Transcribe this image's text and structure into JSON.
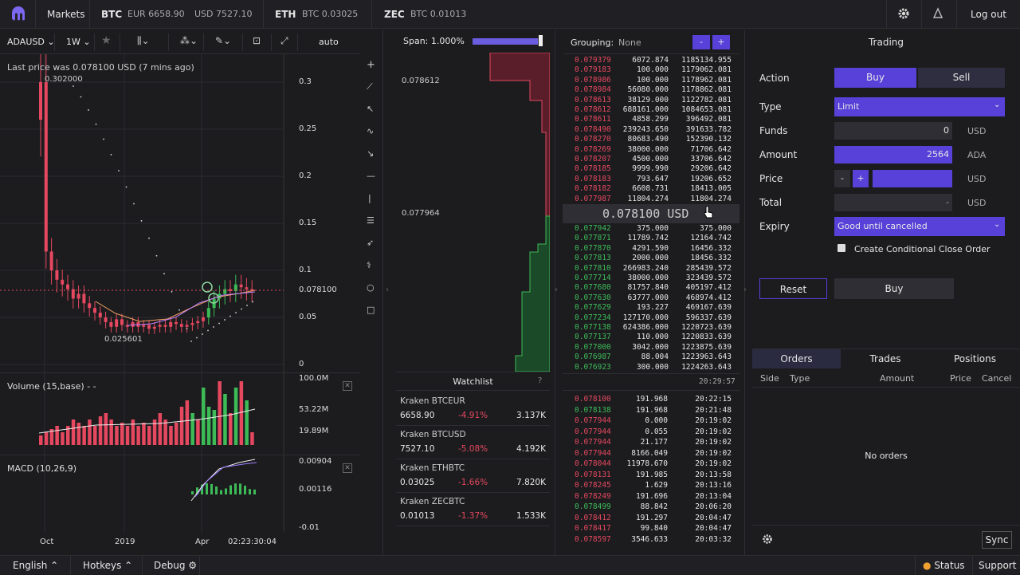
{
  "topbar": {
    "logo": "kraken-logo-icon",
    "markets": "Markets",
    "btc_label": "BTC",
    "btc_eur": "EUR 6658.90",
    "btc_usd": "USD 7527.10",
    "eth_label": "ETH",
    "eth_btc": "BTC 0.03025",
    "zec_label": "ZEC",
    "zec_btc": "BTC 0.01013",
    "logout": "Log out"
  },
  "chart_toolbar": {
    "pair": "ADAUSD",
    "interval": "1W",
    "auto": "auto"
  },
  "chart": {
    "last_price_text": "Last price was 0.078100 USD (7 mins ago)",
    "high_label": "0.302000",
    "low_label": "0.025601",
    "price_ticks": [
      "0.3",
      "0.25",
      "0.2",
      "0.15",
      "0.1",
      "0.078100",
      "0.05",
      "0"
    ],
    "volume_title": "Volume (15,base) - -",
    "volume_ticks": [
      "100.0M",
      "53.22M",
      "19.89M"
    ],
    "macd_title": "MACD (10,26,9)",
    "macd_ticks": [
      "0.00904",
      "0.00116",
      "-0.01"
    ],
    "x_ticks": [
      "Oct",
      "2019",
      "Apr"
    ],
    "time_label": "02:23:30:04"
  },
  "depth": {
    "span_label": "Span: 1.000%",
    "span_fraction": 0.95,
    "price_top": "0.078612",
    "price_mid": "0.077964"
  },
  "watchlist": {
    "title": "Watchlist",
    "help": "?",
    "items": [
      {
        "name": "Kraken BTCEUR",
        "price": "6658.90",
        "change": "-4.91%",
        "volume": "3.137K"
      },
      {
        "name": "Kraken BTCUSD",
        "price": "7527.10",
        "change": "-5.08%",
        "volume": "4.192K"
      },
      {
        "name": "Kraken ETHBTC",
        "price": "0.03025",
        "change": "-1.66%",
        "volume": "7.820K"
      },
      {
        "name": "Kraken ZECBTC",
        "price": "0.01013",
        "change": "-1.37%",
        "volume": "1.533K"
      }
    ]
  },
  "orderbook": {
    "grouping_label": "Grouping:",
    "grouping_value": "None",
    "minus": "-",
    "plus": "+",
    "asks": [
      [
        "0.079379",
        "6072.874",
        "1185134.955"
      ],
      [
        "0.079183",
        "100.000",
        "1179062.081"
      ],
      [
        "0.078986",
        "100.000",
        "1178962.081"
      ],
      [
        "0.078984",
        "56080.000",
        "1178862.081"
      ],
      [
        "0.078613",
        "38129.000",
        "1122782.081"
      ],
      [
        "0.078612",
        "688161.000",
        "1084653.081"
      ],
      [
        "0.078611",
        "4858.299",
        "396492.081"
      ],
      [
        "0.078490",
        "239243.650",
        "391633.782"
      ],
      [
        "0.078270",
        "80683.490",
        "152390.132"
      ],
      [
        "0.078269",
        "38000.000",
        "71706.642"
      ],
      [
        "0.078207",
        "4500.000",
        "33706.642"
      ],
      [
        "0.078185",
        "9999.990",
        "29206.642"
      ],
      [
        "0.078183",
        "793.647",
        "19206.652"
      ],
      [
        "0.078182",
        "6608.731",
        "18413.005"
      ],
      [
        "0.077987",
        "11804.274",
        "11804.274"
      ]
    ],
    "mid_price": "0.078100 USD",
    "bids": [
      [
        "0.077942",
        "375.000",
        "375.000"
      ],
      [
        "0.077871",
        "11789.742",
        "12164.742"
      ],
      [
        "0.077870",
        "4291.590",
        "16456.332"
      ],
      [
        "0.077813",
        "2000.000",
        "18456.332"
      ],
      [
        "0.077810",
        "266983.240",
        "285439.572"
      ],
      [
        "0.077714",
        "38000.000",
        "323439.572"
      ],
      [
        "0.077680",
        "81757.840",
        "405197.412"
      ],
      [
        "0.077630",
        "63777.000",
        "468974.412"
      ],
      [
        "0.077629",
        "193.227",
        "469167.639"
      ],
      [
        "0.077234",
        "127170.000",
        "596337.639"
      ],
      [
        "0.077138",
        "624386.000",
        "1220723.639"
      ],
      [
        "0.077137",
        "110.000",
        "1220833.639"
      ],
      [
        "0.077000",
        "3042.000",
        "1223875.639"
      ],
      [
        "0.076987",
        "88.004",
        "1223963.643"
      ],
      [
        "0.076923",
        "300.000",
        "1224263.643"
      ]
    ]
  },
  "trades": {
    "header_time": "20:29:57",
    "rows": [
      [
        "0.078100",
        "191.968",
        "20:22:15",
        "r"
      ],
      [
        "0.078138",
        "191.968",
        "20:21:48",
        "g"
      ],
      [
        "0.077944",
        "0.000",
        "20:19:02",
        "r"
      ],
      [
        "0.077944",
        "0.055",
        "20:19:02",
        "r"
      ],
      [
        "0.077944",
        "21.177",
        "20:19:02",
        "r"
      ],
      [
        "0.077944",
        "8166.049",
        "20:19:02",
        "r"
      ],
      [
        "0.078044",
        "11978.670",
        "20:19:02",
        "r"
      ],
      [
        "0.078131",
        "191.985",
        "20:13:58",
        "r"
      ],
      [
        "0.078245",
        "1.629",
        "20:13:16",
        "r"
      ],
      [
        "0.078249",
        "191.696",
        "20:13:04",
        "r"
      ],
      [
        "0.078499",
        "88.842",
        "20:06:20",
        "g"
      ],
      [
        "0.078412",
        "191.297",
        "20:04:47",
        "r"
      ],
      [
        "0.078417",
        "99.840",
        "20:04:47",
        "r"
      ],
      [
        "0.078597",
        "3546.633",
        "20:03:32",
        "r"
      ]
    ]
  },
  "trading": {
    "title": "Trading",
    "action_label": "Action",
    "buy": "Buy",
    "sell": "Sell",
    "type_label": "Type",
    "type_value": "Limit",
    "funds_label": "Funds",
    "funds_value": "0",
    "funds_unit": "USD",
    "amount_label": "Amount",
    "amount_value": "2564",
    "amount_unit": "ADA",
    "price_label": "Price",
    "price_minus": "-",
    "price_plus": "+",
    "price_unit": "USD",
    "total_label": "Total",
    "total_value": "-",
    "total_unit": "USD",
    "expiry_label": "Expiry",
    "expiry_value": "Good until cancelled",
    "conditional_label": "Create Conditional Close Order",
    "reset": "Reset",
    "submit": "Buy"
  },
  "orders": {
    "tabs": [
      "Orders",
      "Trades",
      "Positions"
    ],
    "columns": [
      "Side",
      "Type",
      "Amount",
      "Price",
      "Cancel"
    ],
    "empty": "No orders",
    "sync": "Sync"
  },
  "bottombar": {
    "language": "English",
    "hotkeys": "Hotkeys",
    "debug": "Debug",
    "status": "Status",
    "support": "Support"
  },
  "colors": {
    "accent": "#5741d9",
    "ask": "#e5485f",
    "bid": "#3dbb57"
  }
}
